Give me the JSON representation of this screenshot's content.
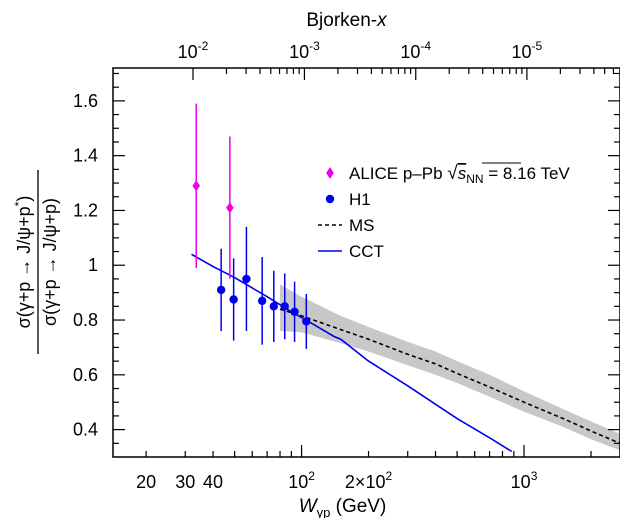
{
  "chart_data": {
    "type": "scatter",
    "title": "",
    "top_axis": {
      "label": "Bjorken-x",
      "ticks": [
        {
          "label": "10",
          "exp": "-2"
        },
        {
          "label": "10",
          "exp": "-3"
        },
        {
          "label": "10",
          "exp": "-4"
        },
        {
          "label": "10",
          "exp": "-5"
        }
      ]
    },
    "x_axis": {
      "label_main": "W",
      "label_sub": "γp",
      "label_unit": " (GeV)",
      "scale": "log",
      "range": [
        14.2,
        2700
      ],
      "ticks": [
        {
          "value": 20,
          "label": "20"
        },
        {
          "value": 30,
          "label": "30"
        },
        {
          "value": 40,
          "label": "40"
        },
        {
          "value": 100,
          "label": "10",
          "exp": "2"
        },
        {
          "value": 200,
          "label": "2×10",
          "exp": "2"
        },
        {
          "value": 1000,
          "label": "10",
          "exp": "3"
        }
      ]
    },
    "y_axis": {
      "label_numerator": "σ(γ+p → J/ψ+p*)",
      "label_denominator": "σ(γ+p → J/ψ+p)",
      "range": [
        0.3,
        1.72
      ],
      "ticks": [
        {
          "value": 0.4,
          "label": "0.4"
        },
        {
          "value": 0.6,
          "label": "0.6"
        },
        {
          "value": 0.8,
          "label": "0.8"
        },
        {
          "value": 1.0,
          "label": "1"
        },
        {
          "value": 1.2,
          "label": "1.2"
        },
        {
          "value": 1.4,
          "label": "1.4"
        },
        {
          "value": 1.6,
          "label": "1.6"
        }
      ]
    },
    "legend": {
      "position": "top-right",
      "entries": [
        {
          "key": "alice",
          "text": "ALICE p–Pb ",
          "sqrt_label": "s",
          "sqrt_sub": "NN",
          "suffix": " = 8.16 TeV"
        },
        {
          "key": "h1",
          "text": "H1"
        },
        {
          "key": "ms",
          "text": "MS"
        },
        {
          "key": "cct",
          "text": "CCT"
        }
      ]
    },
    "series": [
      {
        "key": "alice",
        "name": "ALICE p–Pb √sNN = 8.16 TeV",
        "marker": "diamond",
        "color": "#ee00ee",
        "points": [
          {
            "x": 33.6,
            "y": 1.29,
            "err": 0.3
          },
          {
            "x": 47.6,
            "y": 1.21,
            "err": 0.26
          }
        ]
      },
      {
        "key": "h1",
        "name": "H1",
        "marker": "circle",
        "color": "#0000ee",
        "points": [
          {
            "x": 43.5,
            "y": 0.91,
            "err": 0.15
          },
          {
            "x": 49.5,
            "y": 0.875,
            "err": 0.15
          },
          {
            "x": 56.5,
            "y": 0.95,
            "err": 0.19
          },
          {
            "x": 66.5,
            "y": 0.87,
            "err": 0.16
          },
          {
            "x": 75,
            "y": 0.85,
            "err": 0.13
          },
          {
            "x": 84,
            "y": 0.85,
            "err": 0.12
          },
          {
            "x": 93,
            "y": 0.83,
            "err": 0.11
          },
          {
            "x": 105,
            "y": 0.795,
            "err": 0.1
          }
        ]
      },
      {
        "key": "ms",
        "name": "MS",
        "type": "line",
        "style": "dashed",
        "color": "#000000",
        "points": [
          {
            "x": 80,
            "y": 0.84
          },
          {
            "x": 100,
            "y": 0.815
          },
          {
            "x": 150,
            "y": 0.765
          },
          {
            "x": 200,
            "y": 0.73
          },
          {
            "x": 300,
            "y": 0.675
          },
          {
            "x": 400,
            "y": 0.64
          },
          {
            "x": 500,
            "y": 0.605
          },
          {
            "x": 700,
            "y": 0.555
          },
          {
            "x": 1000,
            "y": 0.5
          },
          {
            "x": 1500,
            "y": 0.44
          },
          {
            "x": 2000,
            "y": 0.395
          },
          {
            "x": 2700,
            "y": 0.35
          }
        ],
        "band": [
          {
            "x": 80,
            "lo": 0.76,
            "hi": 0.93
          },
          {
            "x": 100,
            "lo": 0.755,
            "hi": 0.885
          },
          {
            "x": 150,
            "lo": 0.715,
            "hi": 0.815
          },
          {
            "x": 200,
            "lo": 0.685,
            "hi": 0.775
          },
          {
            "x": 300,
            "lo": 0.635,
            "hi": 0.72
          },
          {
            "x": 400,
            "lo": 0.6,
            "hi": 0.685
          },
          {
            "x": 500,
            "lo": 0.57,
            "hi": 0.65
          },
          {
            "x": 700,
            "lo": 0.52,
            "hi": 0.6
          },
          {
            "x": 1000,
            "lo": 0.465,
            "hi": 0.54
          },
          {
            "x": 1500,
            "lo": 0.41,
            "hi": 0.475
          },
          {
            "x": 2000,
            "lo": 0.365,
            "hi": 0.43
          },
          {
            "x": 2700,
            "lo": 0.325,
            "hi": 0.385
          }
        ]
      },
      {
        "key": "cct",
        "name": "CCT",
        "type": "line",
        "style": "solid",
        "color": "#0000ee",
        "points": [
          {
            "x": 32,
            "y": 1.04
          },
          {
            "x": 40,
            "y": 0.995
          },
          {
            "x": 50,
            "y": 0.955
          },
          {
            "x": 70,
            "y": 0.885
          },
          {
            "x": 90,
            "y": 0.83
          },
          {
            "x": 110,
            "y": 0.79
          },
          {
            "x": 140,
            "y": 0.74
          },
          {
            "x": 150,
            "y": 0.73
          },
          {
            "x": 200,
            "y": 0.65
          },
          {
            "x": 300,
            "y": 0.56
          },
          {
            "x": 500,
            "y": 0.44
          },
          {
            "x": 700,
            "y": 0.37
          },
          {
            "x": 880,
            "y": 0.32
          }
        ]
      }
    ]
  }
}
